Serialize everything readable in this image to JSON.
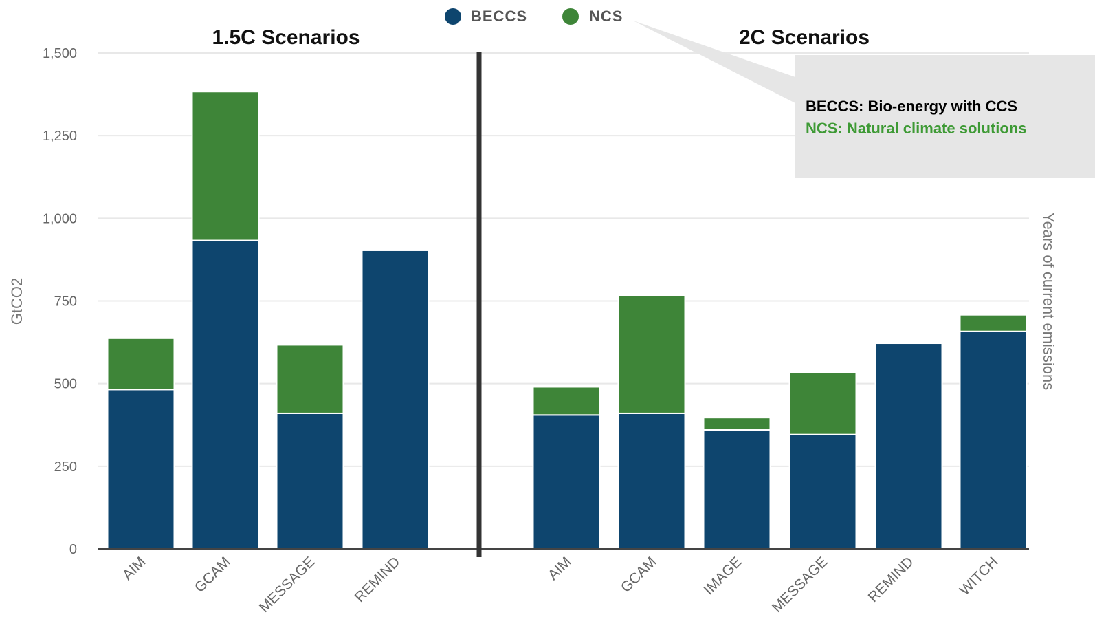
{
  "chart_data": {
    "type": "bar",
    "stacked": true,
    "ylabel": "GtCO2",
    "y2label": "Years of current emissions",
    "ylim": [
      0,
      1500
    ],
    "yticks": [
      0,
      250,
      500,
      750,
      1000,
      1250,
      1500
    ],
    "ytick_labels": [
      "0",
      "250",
      "500",
      "750",
      "1,000",
      "1,250",
      "1,500"
    ],
    "grid": true,
    "legend_position": "top-center",
    "series_meta": [
      {
        "name": "BECCS",
        "color": "#0e456e"
      },
      {
        "name": "NCS",
        "color": "#3e8538"
      }
    ],
    "panels": [
      {
        "title": "1.5C Scenarios",
        "categories": [
          "AIM",
          "GCAM",
          "MESSAGE",
          "REMIND"
        ],
        "series": [
          {
            "name": "BECCS",
            "values": [
              482,
              933,
              410,
              903
            ]
          },
          {
            "name": "NCS",
            "values": [
              155,
              450,
              207,
              0
            ]
          }
        ]
      },
      {
        "title": "2C Scenarios",
        "categories": [
          "AIM",
          "GCAM",
          "IMAGE",
          "MESSAGE",
          "REMIND",
          "WITCH"
        ],
        "series": [
          {
            "name": "BECCS",
            "values": [
              405,
              410,
              360,
              346,
              622,
              658
            ]
          },
          {
            "name": "NCS",
            "values": [
              85,
              357,
              37,
              188,
              0,
              50
            ]
          }
        ]
      }
    ]
  },
  "callout": {
    "line1": "BECCS: Bio-energy with CCS",
    "line2": "NCS: Natural climate solutions",
    "line1_color": "#000000",
    "line2_color": "#3e9a35",
    "bg_color": "#e6e6e6"
  }
}
